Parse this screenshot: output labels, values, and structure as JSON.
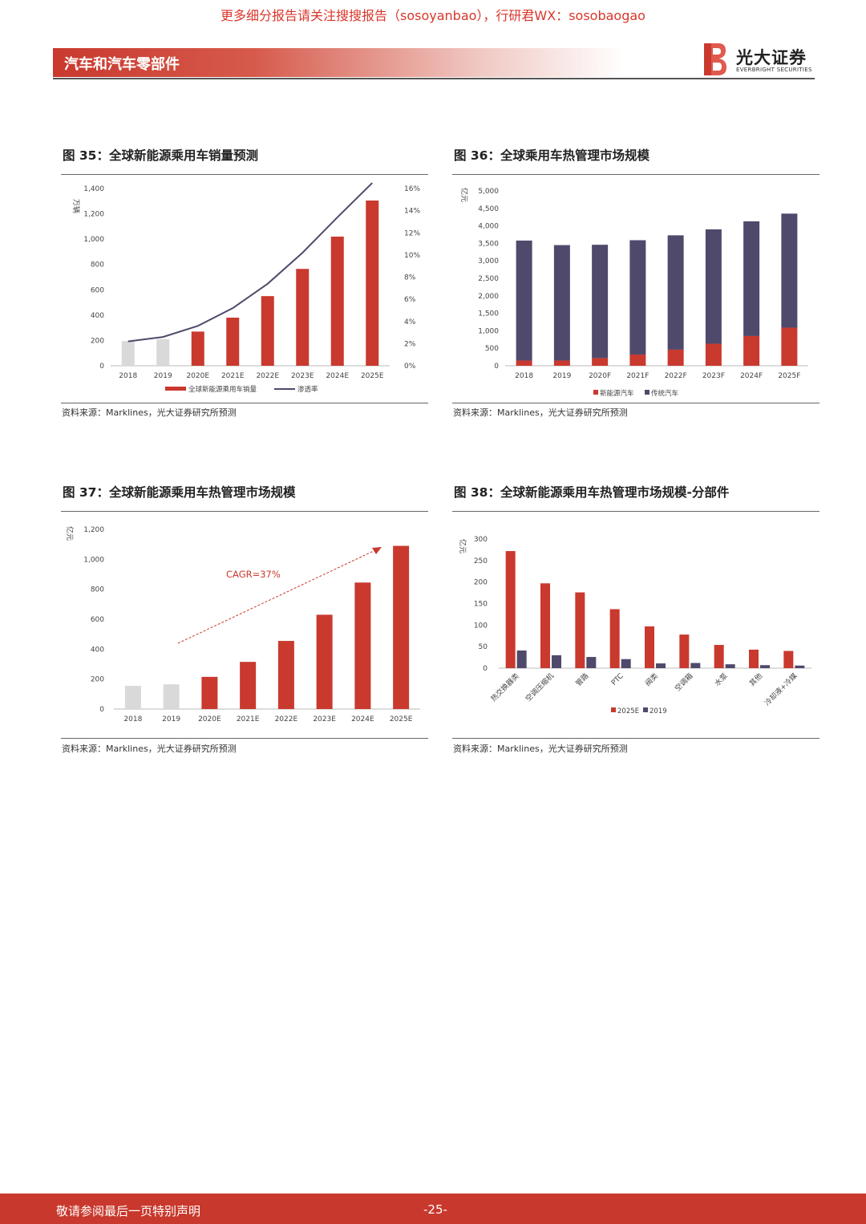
{
  "watermark": "更多细分报告请关注搜搜报告（sosoyanbao），行研君WX：sosobaogao",
  "header": {
    "title": "汽车和汽车零部件",
    "logo_cn": "光大证券",
    "logo_en": "EVERBRIGHT SECURITIES"
  },
  "colors": {
    "red": "#c9392e",
    "purple": "#4f4a6b",
    "gray": "#d9d9d9",
    "line": "#4f4a6b"
  },
  "figures": [
    {
      "title": "图 35：全球新能源乘用车销量预测",
      "source": "资料来源：Marklines，光大证券研究所预测"
    },
    {
      "title": "图 36：全球乘用车热管理市场规模",
      "source": "资料来源：Marklines，光大证券研究所预测"
    },
    {
      "title": "图 37：全球新能源乘用车热管理市场规模",
      "source": "资料来源：Marklines，光大证券研究所预测"
    },
    {
      "title": "图 38：全球新能源乘用车热管理市场规模-分部件",
      "source": "资料来源：Marklines，光大证券研究所预测"
    }
  ],
  "chart_data": [
    {
      "type": "bar",
      "ylabel": "万辆",
      "ylim": [
        0,
        1400
      ],
      "y_ticks": [
        "0",
        "200",
        "400",
        "600",
        "800",
        "1,000",
        "1,200",
        "1,400"
      ],
      "y2lim": [
        0,
        16
      ],
      "y2_ticks": [
        "0%",
        "2%",
        "4%",
        "6%",
        "8%",
        "10%",
        "12%",
        "14%",
        "16%"
      ],
      "categories": [
        "2018",
        "2019",
        "2020E",
        "2021E",
        "2022E",
        "2023E",
        "2024E",
        "2025E"
      ],
      "series": [
        {
          "name": "全球新能源乘用车销量",
          "values": [
            195,
            210,
            270,
            380,
            550,
            765,
            1020,
            1305
          ]
        },
        {
          "name": "渗透率",
          "type": "line",
          "axis": "right",
          "values": [
            2.2,
            2.6,
            3.6,
            5.2,
            7.4,
            10.2,
            13.4,
            16.5
          ]
        }
      ],
      "legend": "bottom",
      "note": "2018、2019 bars in gray"
    },
    {
      "type": "bar",
      "stacked": true,
      "ylabel": "亿元",
      "ylim": [
        0,
        5000
      ],
      "y_ticks": [
        "0",
        "500",
        "1,000",
        "1,500",
        "2,000",
        "2,500",
        "3,000",
        "3,500",
        "4,000",
        "4,500",
        "5,000"
      ],
      "categories": [
        "2018",
        "2019",
        "2020F",
        "2021F",
        "2022F",
        "2023F",
        "2024F",
        "2025F"
      ],
      "series": [
        {
          "name": "新能源汽车",
          "values": [
            150,
            150,
            220,
            320,
            460,
            630,
            850,
            1090
          ]
        },
        {
          "name": "传统汽车",
          "values": [
            3430,
            3300,
            3240,
            3270,
            3270,
            3270,
            3280,
            3260
          ]
        }
      ],
      "legend": "bottom"
    },
    {
      "type": "bar",
      "ylabel": "亿元",
      "ylim": [
        0,
        1200
      ],
      "y_ticks": [
        "0",
        "200",
        "400",
        "600",
        "800",
        "1,000",
        "1,200"
      ],
      "categories": [
        "2018",
        "2019",
        "2020E",
        "2021E",
        "2022E",
        "2023E",
        "2024E",
        "2025E"
      ],
      "values": [
        155,
        165,
        215,
        315,
        455,
        630,
        845,
        1090
      ],
      "annotation": "CAGR=37%",
      "note": "2018、2019 bars in gray"
    },
    {
      "type": "bar",
      "ylabel": "亿元",
      "ylim": [
        0,
        300
      ],
      "y_ticks": [
        "0",
        "50",
        "100",
        "150",
        "200",
        "250",
        "300"
      ],
      "categories": [
        "热交换器类",
        "空调压缩机",
        "管路",
        "PTC",
        "阀类",
        "空调箱",
        "水泵",
        "其他",
        "冷却液+冷媒"
      ],
      "series": [
        {
          "name": "2025E",
          "values": [
            272,
            197,
            176,
            137,
            97,
            78,
            54,
            43,
            40
          ]
        },
        {
          "name": "2019",
          "values": [
            41,
            30,
            26,
            21,
            11,
            12,
            9,
            7,
            6
          ]
        }
      ],
      "legend": "bottom"
    }
  ],
  "footer": {
    "disclaimer": "敬请参阅最后一页特别声明",
    "page": "-25-"
  }
}
